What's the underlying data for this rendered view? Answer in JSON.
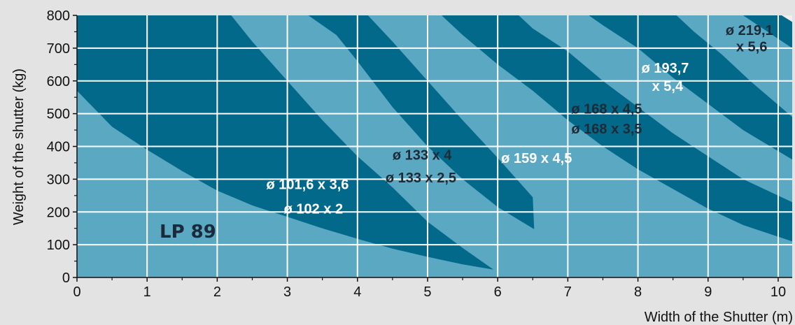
{
  "colors": {
    "dark": "#02698a",
    "light": "#5ba8c3",
    "background": "#e3e3e3",
    "grid": "#ffffff",
    "label_dark": "#1e2a36",
    "label_white": "#ffffff"
  },
  "chart_data": {
    "type": "area",
    "title": "",
    "model_label": "LP 89",
    "xlabel": "Width of the Shutter (m)",
    "ylabel": "Weight of the shutter (kg)",
    "xlim": [
      0,
      10.2
    ],
    "ylim": [
      0,
      800
    ],
    "x_ticks": [
      "0",
      "1",
      "2",
      "3",
      "4",
      "5",
      "6",
      "7",
      "8",
      "9",
      "10"
    ],
    "y_ticks": [
      "0",
      "100",
      "200",
      "300",
      "400",
      "500",
      "600",
      "700",
      "800"
    ],
    "grid": true,
    "boundaries": [
      {
        "points": [
          [
            0,
            570
          ],
          [
            0.5,
            460
          ],
          [
            1,
            390
          ],
          [
            1.5,
            325
          ],
          [
            2,
            265
          ],
          [
            2.5,
            220
          ],
          [
            3,
            185
          ],
          [
            3.5,
            150
          ],
          [
            4,
            118
          ],
          [
            4.5,
            88
          ],
          [
            5,
            63
          ],
          [
            5.5,
            40
          ],
          [
            6,
            22
          ],
          [
            6.5,
            9
          ],
          [
            7,
            2
          ]
        ]
      },
      {
        "points": [
          [
            2.2,
            800
          ],
          [
            2.5,
            720
          ],
          [
            3,
            600
          ],
          [
            3.5,
            480
          ],
          [
            4,
            370
          ],
          [
            4.5,
            275
          ],
          [
            5,
            170
          ],
          [
            5.5,
            90
          ],
          [
            6,
            15
          ],
          [
            6.05,
            0
          ]
        ]
      },
      {
        "points": [
          [
            3.3,
            800
          ],
          [
            3.7,
            740
          ],
          [
            4,
            660
          ],
          [
            4.5,
            520
          ],
          [
            5,
            400
          ],
          [
            5.5,
            300
          ],
          [
            6,
            215
          ],
          [
            6.5,
            150
          ],
          [
            7,
            95
          ],
          [
            7.5,
            55
          ],
          [
            8,
            30
          ],
          [
            8.5,
            15
          ],
          [
            9,
            6
          ],
          [
            10.2,
            0
          ]
        ]
      },
      {
        "points": [
          [
            4.15,
            800
          ],
          [
            4.5,
            720
          ],
          [
            5,
            600
          ],
          [
            5.5,
            480
          ],
          [
            6,
            365
          ],
          [
            6.5,
            245
          ],
          [
            6.55,
            0
          ]
        ]
      },
      {
        "points": [
          [
            5.2,
            800
          ],
          [
            5.5,
            740
          ],
          [
            6,
            650
          ],
          [
            6.5,
            570
          ],
          [
            7,
            480
          ],
          [
            7.5,
            400
          ],
          [
            8,
            330
          ],
          [
            8.5,
            270
          ],
          [
            9,
            210
          ],
          [
            9.5,
            160
          ],
          [
            10.2,
            110
          ]
        ]
      },
      {
        "points": [
          [
            6.3,
            800
          ],
          [
            6.5,
            760
          ],
          [
            7,
            690
          ],
          [
            7.5,
            600
          ],
          [
            8,
            520
          ],
          [
            8.5,
            440
          ],
          [
            9,
            370
          ],
          [
            9.5,
            300
          ],
          [
            10.2,
            230
          ]
        ]
      },
      {
        "points": [
          [
            7.3,
            800
          ],
          [
            7.5,
            770
          ],
          [
            8,
            700
          ],
          [
            8.5,
            610
          ],
          [
            9,
            530
          ],
          [
            9.5,
            450
          ],
          [
            10.2,
            360
          ]
        ]
      },
      {
        "points": [
          [
            8.55,
            800
          ],
          [
            8.8,
            750
          ],
          [
            9.2,
            680
          ],
          [
            9.6,
            600
          ],
          [
            10.2,
            490
          ]
        ]
      },
      {
        "points": [
          [
            9.5,
            800
          ],
          [
            10.2,
            700
          ]
        ]
      }
    ],
    "bottom_edge": [
      [
        0,
        0
      ],
      [
        5.5,
        0
      ],
      [
        6.05,
        0
      ],
      [
        6.55,
        0
      ],
      [
        10.2,
        0
      ]
    ],
    "zones": [
      {
        "label": "",
        "color": "light"
      },
      {
        "label": "ø 102 x 2",
        "color": "dark"
      },
      {
        "label": "ø 101,6 x 3,6",
        "color": "light"
      },
      {
        "label": "ø 133 x 2,5",
        "color": "dark"
      },
      {
        "label": "ø 133 x 4",
        "color": "light"
      },
      {
        "label": "ø 159 x 4,5",
        "color": "dark"
      },
      {
        "label": "ø 168 x 3,5",
        "color": "light"
      },
      {
        "label": "ø 168 x 4,5",
        "color": "dark"
      },
      {
        "label": "ø 193,7 x 5,4",
        "color": "light"
      },
      {
        "label": "ø 219,1 x 5,6",
        "color": "dark"
      }
    ],
    "labels": [
      {
        "text": "ø 101,6 x 3,6",
        "x": 2.7,
        "y": 270,
        "color": "white"
      },
      {
        "text": "ø 102 x 2",
        "x": 2.95,
        "y": 195,
        "color": "white"
      },
      {
        "text": "ø 133 x 4",
        "x": 4.5,
        "y": 360,
        "color": "dark"
      },
      {
        "text": "ø 133 x 2,5",
        "x": 4.4,
        "y": 290,
        "color": "dark"
      },
      {
        "text": "ø 159 x 4,5",
        "x": 6.05,
        "y": 350,
        "color": "white"
      },
      {
        "text": "ø 168 x 4,5",
        "x": 7.05,
        "y": 500,
        "color": "dark"
      },
      {
        "text": "ø 168 x 3,5",
        "x": 7.05,
        "y": 440,
        "color": "dark"
      },
      {
        "text": "ø 193,7",
        "x": 8.05,
        "y": 625,
        "color": "white"
      },
      {
        "text": "x 5,4",
        "x": 8.2,
        "y": 570,
        "color": "white"
      },
      {
        "text": "ø 219,1",
        "x": 9.25,
        "y": 740,
        "color": "dark"
      },
      {
        "text": "x 5,6",
        "x": 9.4,
        "y": 690,
        "color": "dark"
      }
    ]
  }
}
